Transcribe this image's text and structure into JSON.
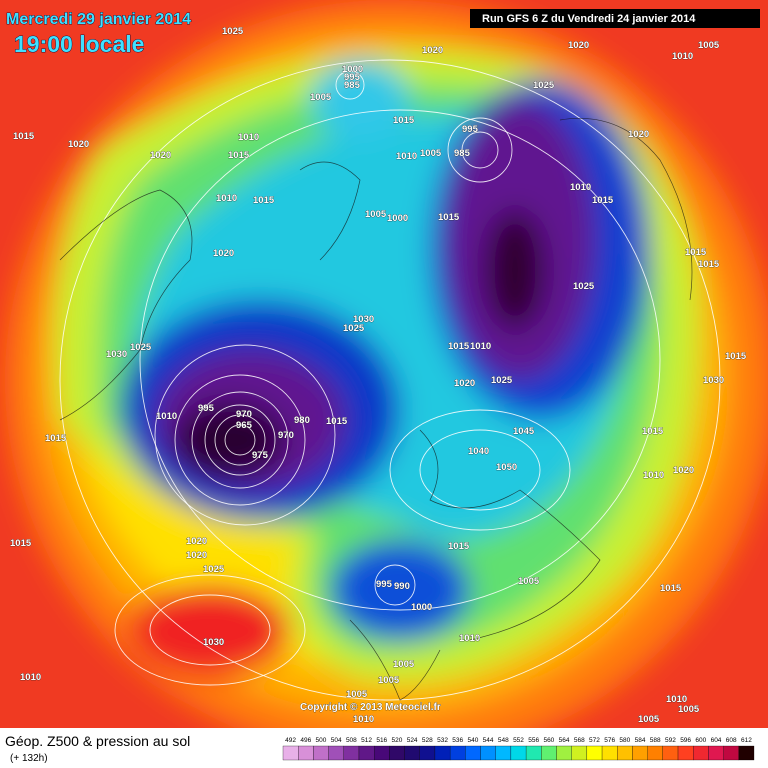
{
  "header": {
    "date": "Mercredi 29 janvier 2014",
    "time": "19:00 locale",
    "run": "Run GFS 6 Z du Vendredi 24 janvier 2014"
  },
  "footer": {
    "title": "Géop. Z500 & pression au sol",
    "lead": "(+ 132h)",
    "copyright": "Copyright © 2013 Meteociel.fr"
  },
  "legend": {
    "values": [
      492,
      496,
      500,
      504,
      508,
      512,
      516,
      520,
      524,
      528,
      532,
      536,
      540,
      544,
      548,
      552,
      556,
      560,
      564,
      568,
      572,
      576,
      580,
      584,
      588,
      592,
      596,
      600,
      604,
      608,
      612
    ],
    "colors": [
      "#e8b0e8",
      "#d890d8",
      "#c070c8",
      "#a050b8",
      "#8030a0",
      "#601888",
      "#480878",
      "#300868",
      "#200a70",
      "#101090",
      "#0020b8",
      "#0040e0",
      "#0068ff",
      "#0090ff",
      "#00b8ff",
      "#00d8e8",
      "#20e8b0",
      "#60f070",
      "#a0f040",
      "#d0f020",
      "#ffff00",
      "#ffe000",
      "#ffc000",
      "#ffa000",
      "#ff8000",
      "#ff6010",
      "#ff4020",
      "#f02830",
      "#e01850",
      "#c00840",
      "#200000"
    ]
  },
  "pressure_labels": [
    1025,
    1020,
    1020,
    1005,
    1010,
    1025,
    1000,
    995,
    985,
    1005,
    1015,
    1020,
    1010,
    1015,
    1020,
    1015,
    995,
    1010,
    1005,
    985,
    1020,
    1010,
    1015,
    1010,
    1015,
    1005,
    1000,
    1015,
    1020,
    1015,
    1015,
    1025,
    1030,
    1025,
    1015,
    1010,
    1030,
    1025,
    1015,
    1030,
    1020,
    1025,
    995,
    1010,
    970,
    965,
    975,
    980,
    970,
    1015,
    1015,
    1045,
    1040,
    1015,
    1010,
    1020,
    1050,
    1015,
    1020,
    1020,
    1025,
    1015,
    995,
    990,
    1000,
    1005,
    1015,
    1030,
    1010,
    1010,
    1005,
    1005,
    1005,
    1010,
    1010,
    1005,
    1005
  ]
}
